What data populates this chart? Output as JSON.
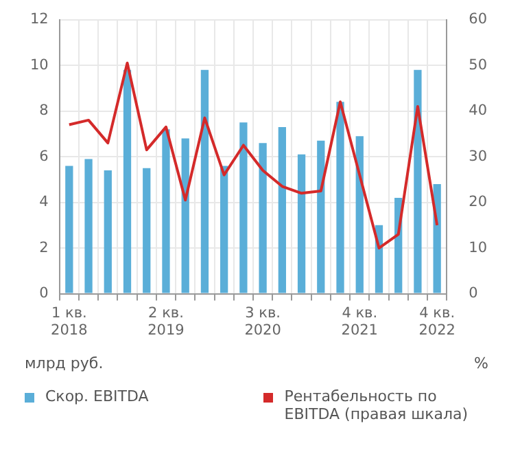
{
  "chart_data": {
    "type": "bar",
    "ylabel": "млрд руб.",
    "y2label": "%",
    "categories": [
      "1 кв.\n2018",
      null,
      null,
      null,
      null,
      "2 кв.\n2019",
      null,
      null,
      null,
      null,
      "3 кв.\n2020",
      null,
      null,
      null,
      null,
      "4 кв.\n2021",
      null,
      null,
      null,
      "4 кв.\n2022"
    ],
    "series": [
      {
        "name": "Скор. EBITDA",
        "color": "#5aaed8",
        "values": [
          5.6,
          5.9,
          5.4,
          9.8,
          5.5,
          7.2,
          6.8,
          9.8,
          5.6,
          7.5,
          6.6,
          7.3,
          6.1,
          6.7,
          8.4,
          6.9,
          3.0,
          4.2,
          9.8,
          4.8
        ]
      },
      {
        "name": "Рентабельность по EBITDA (правая шкала)",
        "type": "line",
        "axis": "y2",
        "color": "#d42a2a",
        "values": [
          37,
          38,
          33,
          50.5,
          31.5,
          36.5,
          20.5,
          38.5,
          26,
          32.5,
          27,
          23.5,
          22,
          22.5,
          42,
          26,
          10,
          13,
          41,
          15
        ]
      }
    ],
    "ylim": [
      0,
      12
    ],
    "yticks": [
      0,
      2,
      4,
      6,
      8,
      10,
      12
    ],
    "y2lim": [
      0,
      60
    ],
    "y2ticks": [
      0,
      10,
      20,
      30,
      40,
      50,
      60
    ],
    "grid": true,
    "legend": "bottom",
    "marker": "none"
  }
}
